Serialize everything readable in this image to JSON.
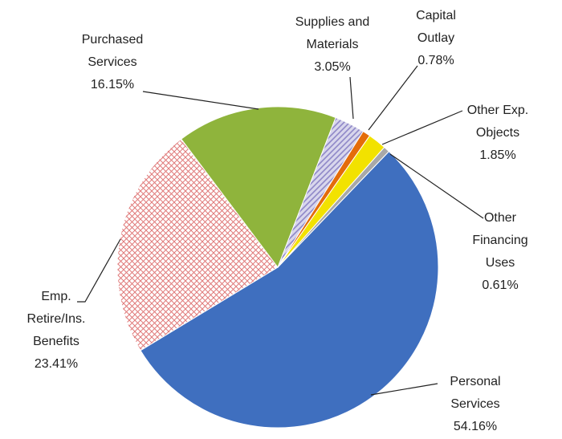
{
  "chart_data": {
    "type": "pie",
    "categories": [
      [
        "Personal",
        "Services"
      ],
      [
        "Emp.",
        "Retire/Ins.",
        "Benefits"
      ],
      [
        "Purchased",
        "Services"
      ],
      [
        "Supplies and",
        "Materials"
      ],
      [
        "Capital",
        "Outlay"
      ],
      [
        "Other Exp.",
        "Objects"
      ],
      [
        "Other",
        "Financing",
        "Uses"
      ]
    ],
    "values": [
      54.16,
      23.41,
      16.15,
      3.05,
      0.78,
      1.85,
      0.61
    ],
    "value_labels": [
      "54.16%",
      "23.41%",
      "16.15%",
      "3.05%",
      "0.78%",
      "1.85%",
      "0.61%"
    ],
    "colors": [
      "#3f6fbf",
      "#e07a7a",
      "#8fb43c",
      "#8f88c8",
      "#e46c0a",
      "#f2e200",
      "#a8a8a8"
    ],
    "patterns": [
      null,
      "crosshatch",
      null,
      "diagonal",
      null,
      null,
      null
    ]
  }
}
